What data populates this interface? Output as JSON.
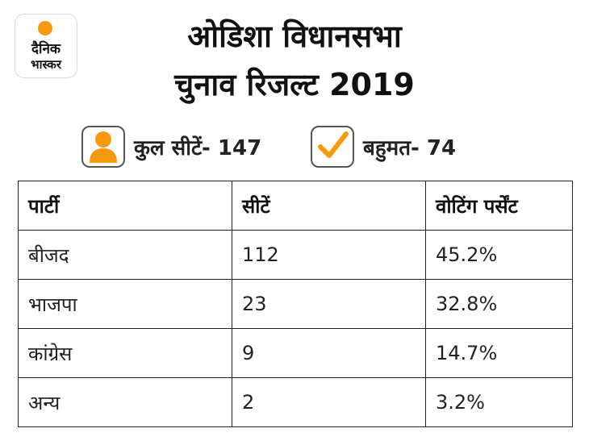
{
  "brand": {
    "line1": "दैनिक",
    "line2": "भास्कर",
    "accent": "#f59a0f"
  },
  "title": {
    "line1": "ओडिशा विधानसभा",
    "line2": "चुनाव रिजल्ट 2019"
  },
  "stats": {
    "total_seats": "कुल सीटें- 147",
    "majority": "बहुमत- 74",
    "icon_user": "user-icon",
    "icon_check": "checkmark-icon"
  },
  "table": {
    "headers": [
      "पार्टी",
      "सीटें",
      "वोटिंग पर्सेंट"
    ],
    "rows": [
      [
        "बीजद",
        "112",
        "45.2%"
      ],
      [
        "भाजपा",
        "23",
        "32.8%"
      ],
      [
        "कांग्रेस",
        "9",
        "14.7%"
      ],
      [
        "अन्य",
        "2",
        "3.2%"
      ]
    ]
  }
}
